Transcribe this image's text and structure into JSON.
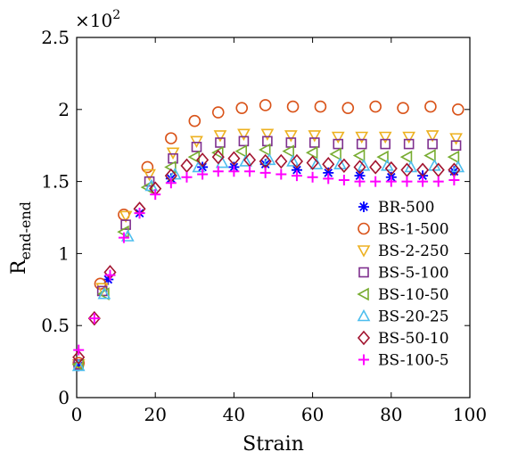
{
  "chart_data": {
    "type": "scatter",
    "title": "",
    "xlabel": "Strain",
    "ylabel_main": "R",
    "ylabel_sub": "end-end",
    "y_multiplier_base": "×10",
    "y_multiplier_exp": "2",
    "xlim": [
      0,
      100
    ],
    "ylim": [
      0,
      2.5
    ],
    "x_ticks": [
      0,
      20,
      40,
      60,
      80,
      100
    ],
    "x_tick_labels": [
      "0",
      "20",
      "40",
      "60",
      "80",
      "100"
    ],
    "y_ticks": [
      0,
      0.5,
      1,
      1.5,
      2,
      2.5
    ],
    "y_tick_labels": [
      "0",
      "0.5",
      "1",
      "1.5",
      "2",
      "2.5"
    ],
    "grid": false,
    "legend_position": "bottom-right",
    "series": [
      {
        "name": "BR-500",
        "marker": "asterisk",
        "color": "#0000ff",
        "x": [
          0.5,
          8,
          16,
          24,
          32,
          40,
          48,
          56,
          64,
          72,
          80,
          88,
          96
        ],
        "y": [
          0.22,
          0.82,
          1.28,
          1.52,
          1.6,
          1.6,
          1.62,
          1.58,
          1.56,
          1.54,
          1.53,
          1.54,
          1.57
        ]
      },
      {
        "name": "BS-1-500",
        "marker": "circle",
        "color": "#d95319",
        "x": [
          0.5,
          6,
          12,
          18,
          24,
          30,
          36,
          42,
          48,
          55,
          62,
          69,
          76,
          83,
          90,
          97
        ],
        "y": [
          0.24,
          0.79,
          1.27,
          1.6,
          1.8,
          1.92,
          1.98,
          2.01,
          2.03,
          2.02,
          2.02,
          2.01,
          2.02,
          2.01,
          2.02,
          2.0
        ]
      },
      {
        "name": "BS-2-250",
        "marker": "triangle-down",
        "color": "#edb120",
        "x": [
          0.5,
          6.5,
          12.5,
          18.5,
          24.5,
          30.5,
          36.5,
          42.5,
          48.5,
          54.5,
          60.5,
          66.5,
          72.5,
          78.5,
          84.5,
          90.5,
          96.5
        ],
        "y": [
          0.23,
          0.76,
          1.26,
          1.55,
          1.7,
          1.78,
          1.82,
          1.83,
          1.83,
          1.82,
          1.82,
          1.81,
          1.81,
          1.81,
          1.81,
          1.82,
          1.8
        ]
      },
      {
        "name": "BS-5-100",
        "marker": "square",
        "color": "#7e2f8e",
        "x": [
          0.5,
          6.5,
          12.5,
          18.5,
          24.5,
          30.5,
          36.5,
          42.5,
          48.5,
          54.5,
          60.5,
          66.5,
          72.5,
          78.5,
          84.5,
          90.5,
          96.5
        ],
        "y": [
          0.23,
          0.74,
          1.2,
          1.5,
          1.66,
          1.74,
          1.77,
          1.78,
          1.78,
          1.77,
          1.77,
          1.76,
          1.76,
          1.76,
          1.76,
          1.76,
          1.75
        ]
      },
      {
        "name": "BS-10-50",
        "marker": "triangle-left",
        "color": "#77ac30",
        "x": [
          0.5,
          7,
          12,
          18,
          24,
          30,
          36,
          42,
          48,
          54,
          60,
          66,
          72,
          78,
          84,
          90,
          96
        ],
        "y": [
          0.23,
          0.72,
          1.15,
          1.46,
          1.6,
          1.67,
          1.7,
          1.71,
          1.72,
          1.71,
          1.7,
          1.69,
          1.68,
          1.67,
          1.67,
          1.68,
          1.67
        ]
      },
      {
        "name": "BS-20-25",
        "marker": "triangle-up",
        "color": "#4dbeee",
        "x": [
          0.5,
          7,
          13,
          19,
          25,
          31,
          37,
          43,
          49,
          55,
          61,
          67,
          73,
          79,
          85,
          91,
          97
        ],
        "y": [
          0.22,
          0.72,
          1.12,
          1.47,
          1.55,
          1.6,
          1.63,
          1.64,
          1.65,
          1.64,
          1.62,
          1.62,
          1.61,
          1.61,
          1.6,
          1.61,
          1.6
        ]
      },
      {
        "name": "BS-50-10",
        "marker": "diamond",
        "color": "#a2142f",
        "x": [
          0.5,
          4.5,
          8.5,
          16,
          20,
          24,
          28,
          32,
          36,
          40,
          44,
          48,
          52,
          56,
          60,
          64,
          68,
          72,
          76,
          80,
          84,
          88,
          92,
          96
        ],
        "y": [
          0.28,
          0.55,
          0.87,
          1.31,
          1.45,
          1.54,
          1.61,
          1.65,
          1.67,
          1.66,
          1.65,
          1.64,
          1.64,
          1.64,
          1.63,
          1.62,
          1.61,
          1.6,
          1.6,
          1.59,
          1.58,
          1.58,
          1.58,
          1.58
        ]
      },
      {
        "name": "BS-100-5",
        "marker": "plus",
        "color": "#ff00ff",
        "x": [
          0.5,
          4.5,
          8.5,
          12,
          16,
          20,
          24,
          28,
          32,
          36,
          40,
          44,
          48,
          52,
          56,
          60,
          64,
          68,
          72,
          76,
          80,
          84,
          88,
          92,
          96
        ],
        "y": [
          0.33,
          0.55,
          0.85,
          1.11,
          1.28,
          1.41,
          1.49,
          1.53,
          1.55,
          1.57,
          1.57,
          1.57,
          1.56,
          1.55,
          1.54,
          1.53,
          1.52,
          1.51,
          1.5,
          1.5,
          1.5,
          1.5,
          1.5,
          1.5,
          1.51
        ]
      }
    ]
  }
}
